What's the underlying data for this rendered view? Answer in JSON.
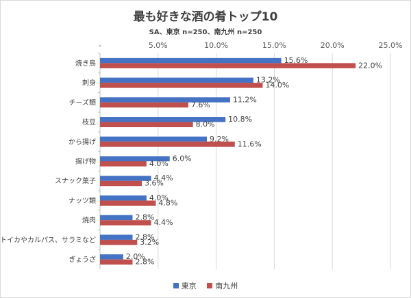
{
  "chart_data": {
    "type": "bar",
    "orientation": "horizontal",
    "title": "最も好きな酒の肴トップ10",
    "subtitle": "SA、東京 n=250、南九州 n=250",
    "categories": [
      "焼き鳥",
      "刺身",
      "チーズ類",
      "枝豆",
      "から揚げ",
      "揚げ物",
      "スナック菓子",
      "ナッツ類",
      "焼肉",
      "ソフトイカやカルパス、サラミなど",
      "ぎょうざ"
    ],
    "series": [
      {
        "name": "東京",
        "color": "#4472c4",
        "values": [
          15.6,
          13.2,
          11.2,
          10.8,
          9.2,
          6.0,
          4.4,
          4.0,
          2.8,
          2.8,
          2.0
        ]
      },
      {
        "name": "南九州",
        "color": "#c0504d",
        "values": [
          22.0,
          14.0,
          7.6,
          8.0,
          11.6,
          4.0,
          3.6,
          4.8,
          4.4,
          3.2,
          2.8
        ]
      }
    ],
    "xlim": [
      0,
      25
    ],
    "ticks": [
      "-",
      "5.0%",
      "10.0%",
      "15.0%",
      "20.0%",
      "25.0%"
    ],
    "grid": true,
    "legend_position": "bottom"
  }
}
